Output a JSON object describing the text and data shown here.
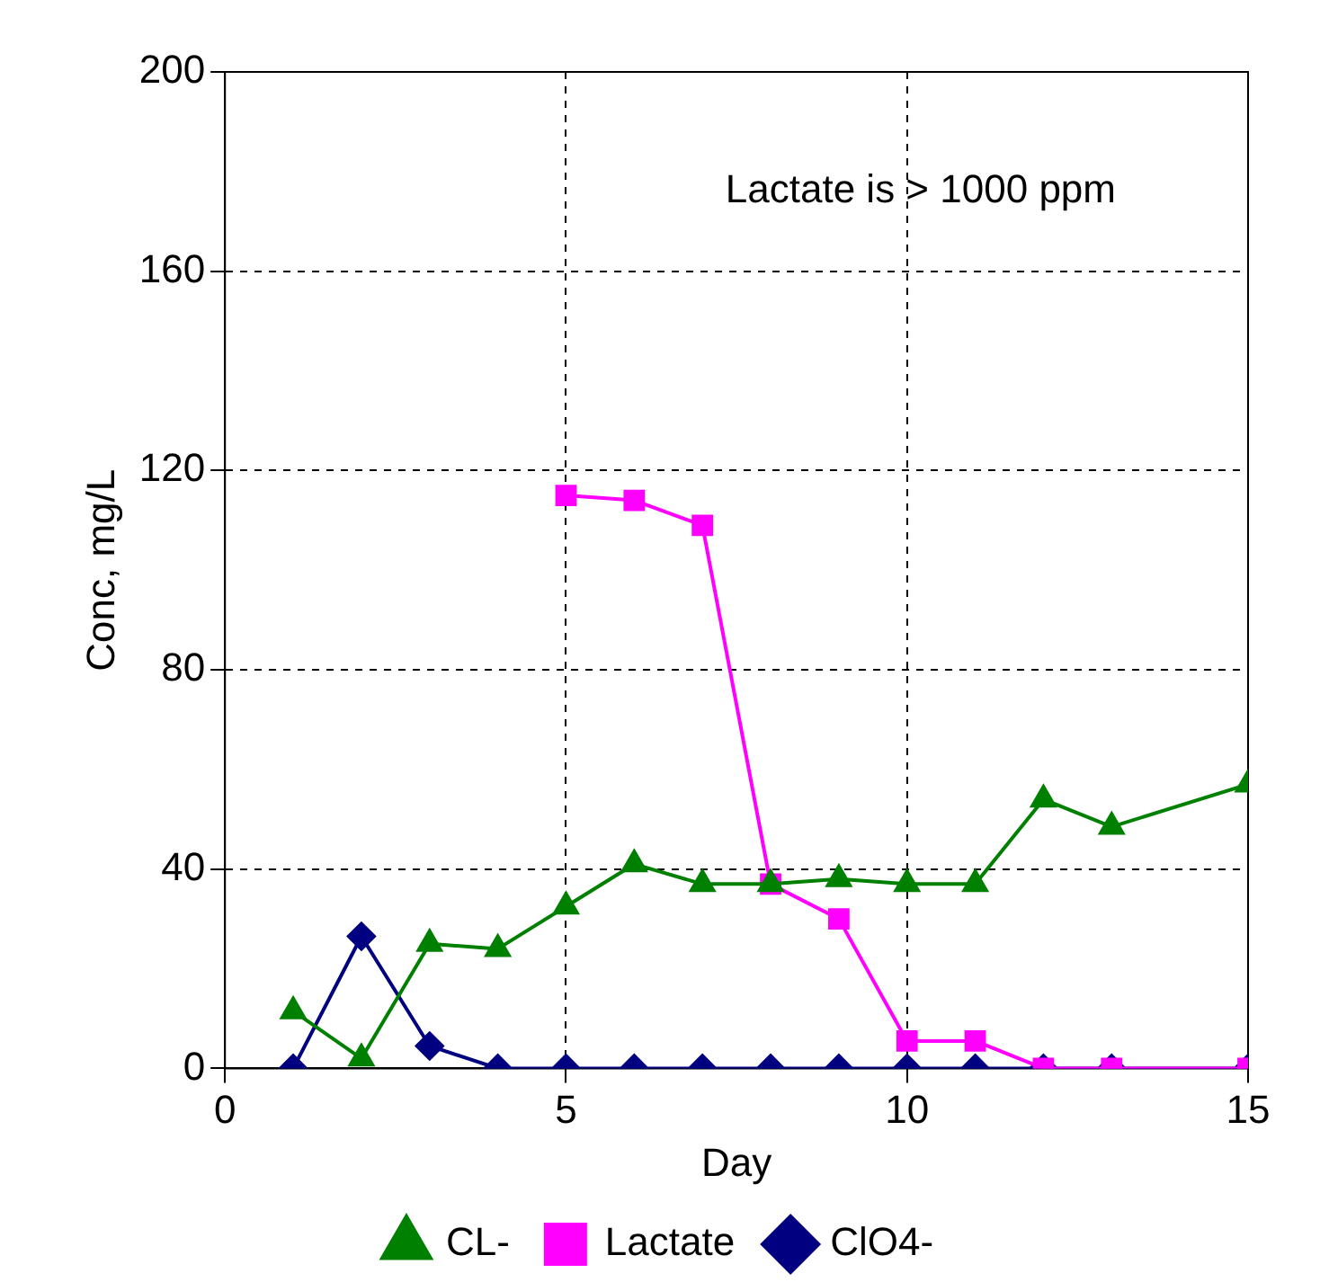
{
  "chart_data": {
    "type": "line",
    "xlabel": "Day",
    "ylabel": "Conc, mg/L",
    "x": [
      1,
      2,
      3,
      4,
      5,
      6,
      7,
      8,
      9,
      10,
      11,
      12,
      13,
      15
    ],
    "series": [
      {
        "name": "ClO4-",
        "color": "#000080",
        "marker": "diamond",
        "values": [
          0,
          26.5,
          4.5,
          0,
          0,
          0,
          0,
          0,
          0,
          0,
          0,
          0,
          0,
          0
        ]
      },
      {
        "name": "Lactate",
        "color": "#ff00ff",
        "marker": "square",
        "values": [
          null,
          null,
          null,
          null,
          115,
          114,
          109,
          37,
          30,
          5.5,
          5.5,
          0,
          0,
          0
        ]
      },
      {
        "name": "CL-",
        "color": "#008000",
        "marker": "triangle",
        "values": [
          11.5,
          2,
          25,
          24,
          32.5,
          41,
          37,
          37,
          38,
          37,
          37,
          54,
          48.5,
          57
        ]
      }
    ],
    "xlim": [
      0,
      15
    ],
    "xticks": [
      0,
      5,
      10,
      15
    ],
    "ylim": [
      0,
      200
    ],
    "yticks": [
      0,
      40,
      80,
      120,
      160,
      200
    ],
    "grid": true,
    "legend": "bottom",
    "line_style": "solid",
    "annotations": [
      "Lactate is > 1000 ppm"
    ]
  }
}
